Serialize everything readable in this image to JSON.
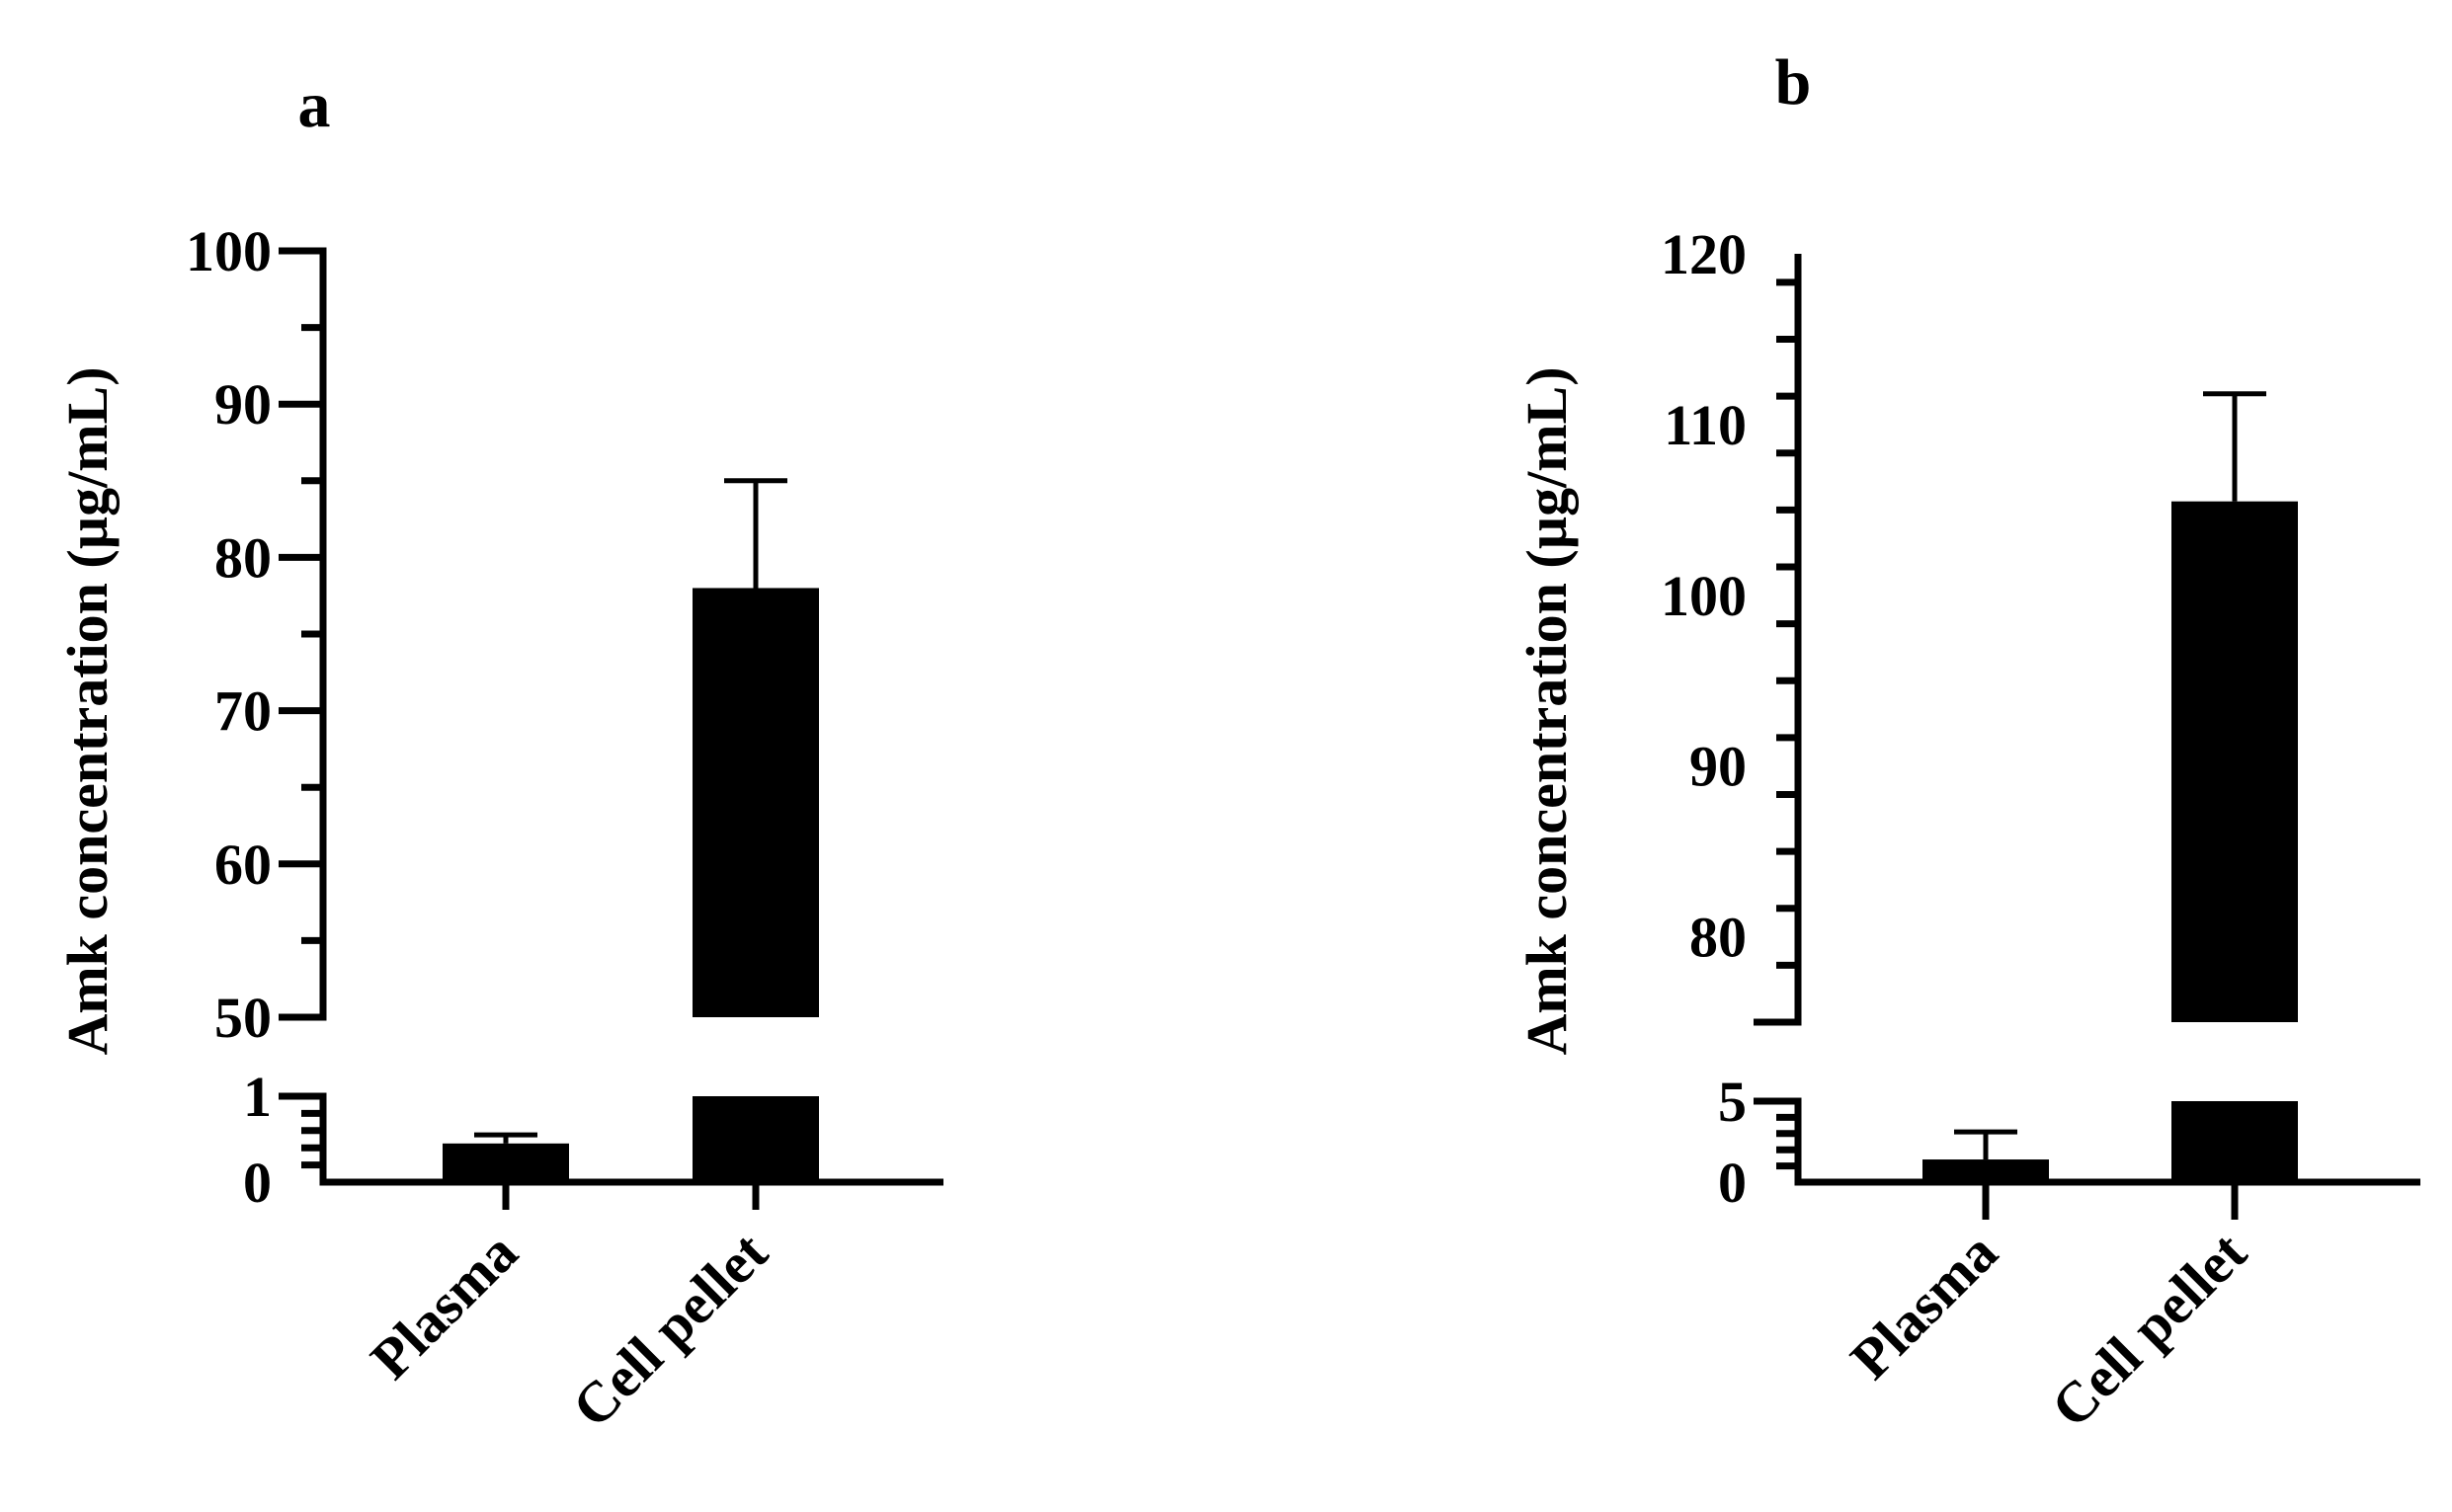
{
  "chart_data": [
    {
      "type": "bar",
      "panel_label": "a",
      "ylabel": "Amk concentration (µg/mL)",
      "categories": [
        "Plasma",
        "Cell pellet"
      ],
      "series": [
        {
          "values": [
            0.45,
            78
          ],
          "error": [
            0.1,
            7
          ],
          "color": "#000000"
        }
      ],
      "axis_break": true,
      "ylim_lower": [
        0,
        1
      ],
      "ylim_upper": [
        50,
        100
      ],
      "yticks_lower": [
        "0",
        "1"
      ],
      "yticks_upper": [
        "50",
        "60",
        "70",
        "80",
        "90",
        "100"
      ],
      "grid": false,
      "legend": "none"
    },
    {
      "type": "bar",
      "panel_label": "b",
      "ylabel": "Amk concentration (µg/mL)",
      "categories": [
        "Plasma",
        "Cell pellet"
      ],
      "series": [
        {
          "values": [
            1.4,
            105.5
          ],
          "error": [
            1.7,
            6.3
          ],
          "color": "#000000"
        }
      ],
      "axis_break": true,
      "ylim_lower": [
        0,
        5
      ],
      "ylim_upper": [
        75,
        120
      ],
      "yticks_lower": [
        "0",
        "5"
      ],
      "yticks_upper": [
        "80",
        "90",
        "100",
        "110",
        "120"
      ],
      "grid": false,
      "legend": "none"
    }
  ]
}
